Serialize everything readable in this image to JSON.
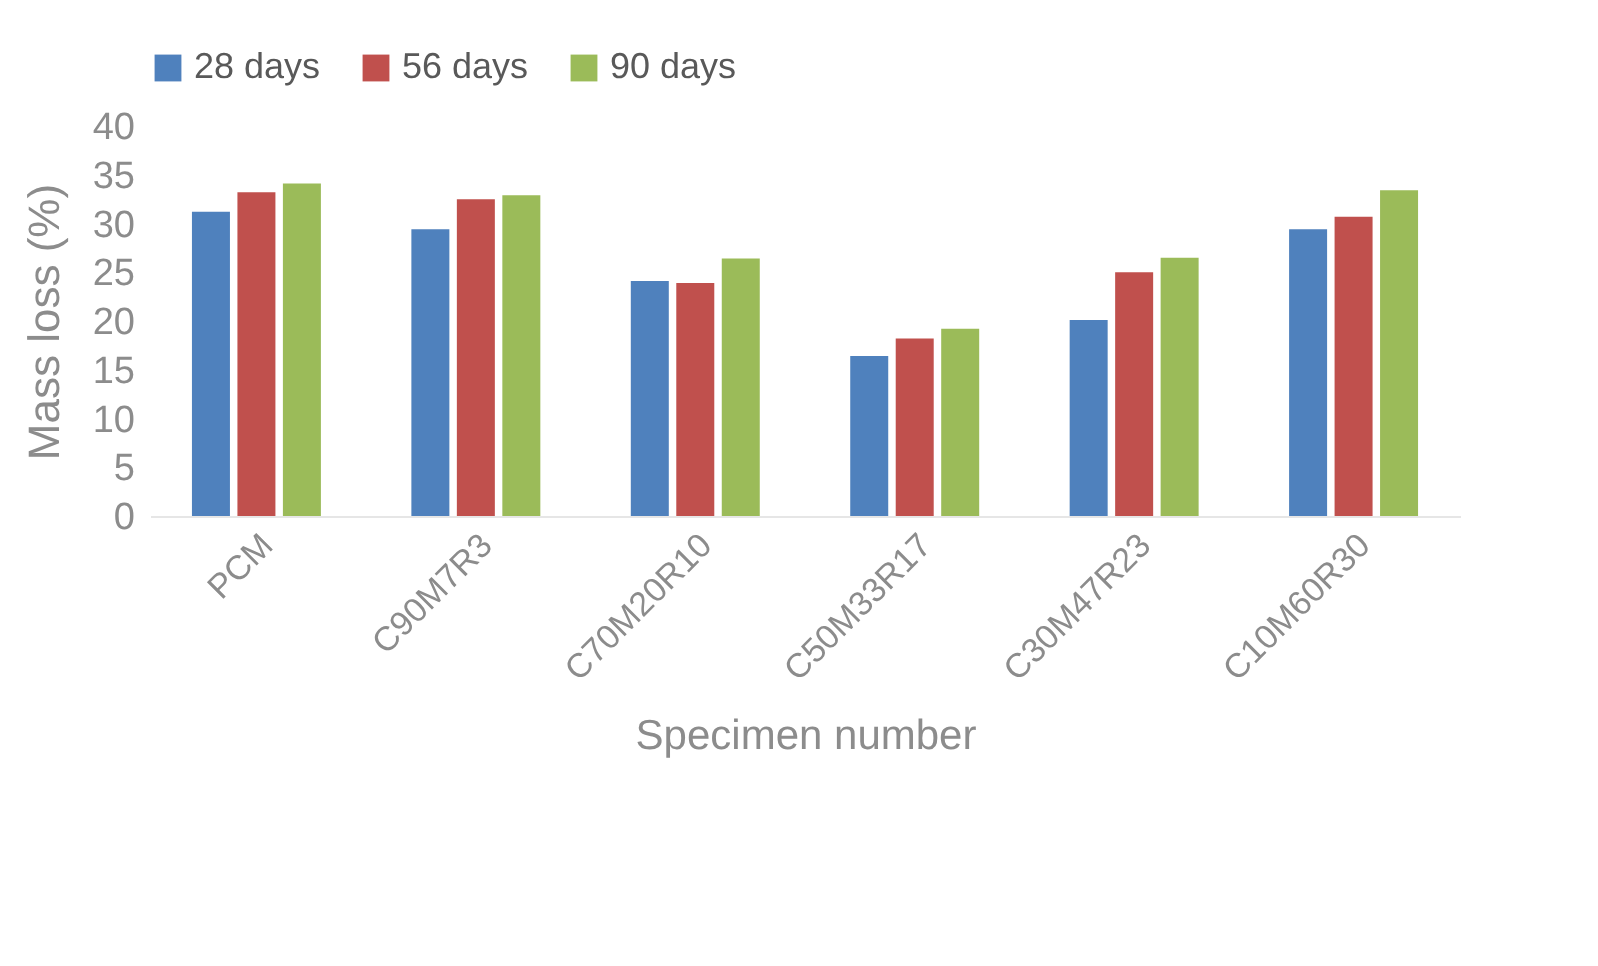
{
  "chart_data": {
    "type": "bar",
    "xlabel": "Specimen number",
    "ylabel": "Mass loss (%)",
    "categories": [
      "PCM",
      "C90M7R3",
      "C70M20R10",
      "C50M33R17",
      "C30M47R23",
      "C10M60R30"
    ],
    "series": [
      {
        "name": "28 days",
        "color": "#4f81bd",
        "values": [
          31.2,
          29.4,
          24.1,
          16.4,
          20.1,
          29.4
        ]
      },
      {
        "name": "56 days",
        "color": "#c0504d",
        "values": [
          33.2,
          32.5,
          23.9,
          18.2,
          25.0,
          30.7
        ]
      },
      {
        "name": "90 days",
        "color": "#9bbb59",
        "values": [
          34.1,
          32.9,
          26.4,
          19.2,
          26.5,
          33.4
        ]
      }
    ],
    "ylim": [
      0,
      40
    ],
    "yticks": [
      0,
      5,
      10,
      15,
      20,
      25,
      30,
      35,
      40
    ],
    "grid": false,
    "legend": "top"
  }
}
